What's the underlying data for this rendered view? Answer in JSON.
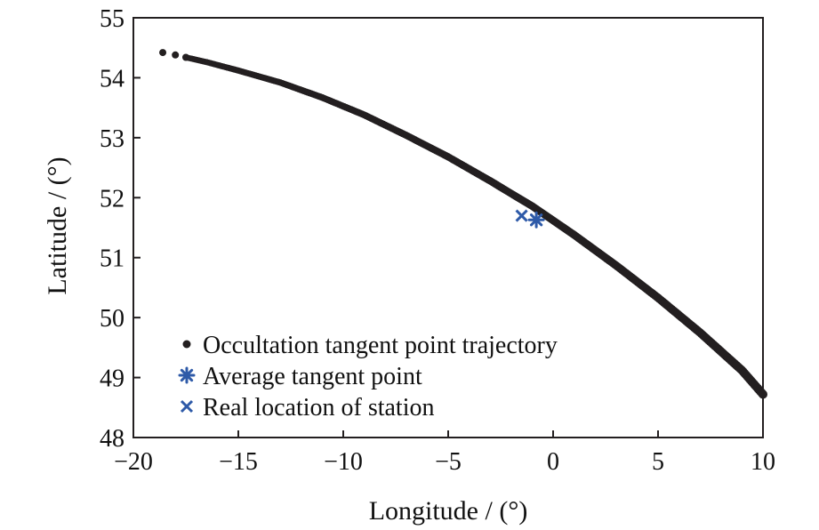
{
  "chart_data": {
    "type": "scatter",
    "xlabel": "Longitude / (°)",
    "ylabel": "Latitude / (°)",
    "xlim": [
      -20,
      10
    ],
    "ylim": [
      48,
      55
    ],
    "xticks": [
      -20,
      -15,
      -10,
      -5,
      0,
      5,
      10
    ],
    "yticks": [
      48,
      49,
      50,
      51,
      52,
      53,
      54,
      55
    ],
    "xtick_labels": [
      "−20",
      "−15",
      "−10",
      "−5",
      "0",
      "5",
      "10"
    ],
    "ytick_labels": [
      "48",
      "49",
      "50",
      "51",
      "52",
      "53",
      "54",
      "55"
    ],
    "grid": false,
    "legend_position": "bottom-left",
    "series": [
      {
        "name": "Occultation tangent point trajectory",
        "marker": "dot",
        "color": "#231f20",
        "points": [
          [
            -18.6,
            54.42
          ],
          [
            -18.0,
            54.38
          ],
          [
            -17.5,
            54.34
          ],
          [
            -16.5,
            54.26
          ],
          [
            -15.0,
            54.12
          ],
          [
            -13.0,
            53.92
          ],
          [
            -11.0,
            53.67
          ],
          [
            -9.0,
            53.38
          ],
          [
            -7.0,
            53.04
          ],
          [
            -5.0,
            52.68
          ],
          [
            -3.0,
            52.28
          ],
          [
            -1.0,
            51.86
          ],
          [
            1.0,
            51.38
          ],
          [
            3.0,
            50.87
          ],
          [
            5.0,
            50.33
          ],
          [
            7.0,
            49.75
          ],
          [
            9.0,
            49.12
          ],
          [
            10.0,
            48.72
          ]
        ]
      },
      {
        "name": "Average tangent point",
        "marker": "asterisk",
        "color": "#2e5aa8",
        "points": [
          [
            -0.8,
            51.63
          ]
        ]
      },
      {
        "name": "Real location of station",
        "marker": "x",
        "color": "#2e5aa8",
        "points": [
          [
            -1.5,
            51.7
          ]
        ]
      }
    ]
  }
}
